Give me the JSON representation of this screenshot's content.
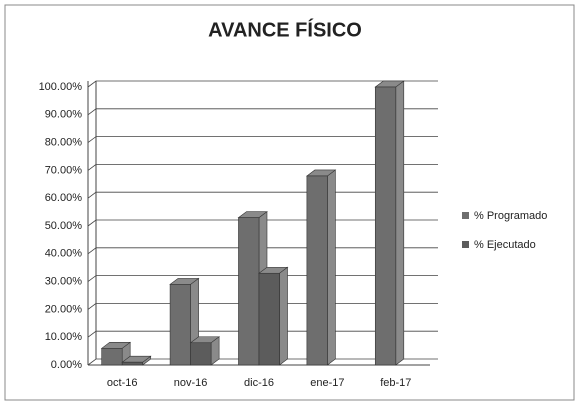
{
  "chart_data": {
    "type": "bar",
    "title": "AVANCE FÍSICO",
    "categories": [
      "oct-16",
      "nov-16",
      "dic-16",
      "ene-17",
      "feb-17"
    ],
    "series": [
      {
        "name": "% Programado",
        "color": "#6e6e6e",
        "values": [
          6,
          29,
          53,
          68,
          100
        ]
      },
      {
        "name": "% Ejecutado",
        "color": "#5c5c5c",
        "values": [
          1,
          8,
          33,
          null,
          null
        ]
      }
    ],
    "ylim": [
      0,
      100
    ],
    "yticks": [
      {
        "value": 0,
        "label": "0.00%"
      },
      {
        "value": 10,
        "label": "10.00%"
      },
      {
        "value": 20,
        "label": "20.00%"
      },
      {
        "value": 30,
        "label": "30.00%"
      },
      {
        "value": 40,
        "label": "40.00%"
      },
      {
        "value": 50,
        "label": "50.00%"
      },
      {
        "value": 60,
        "label": "60.00%"
      },
      {
        "value": 70,
        "label": "70.00%"
      },
      {
        "value": 80,
        "label": "80.00%"
      },
      {
        "value": 90,
        "label": "90.00%"
      },
      {
        "value": 100,
        "label": "100.00%"
      }
    ],
    "grid": true,
    "legend": "right"
  }
}
